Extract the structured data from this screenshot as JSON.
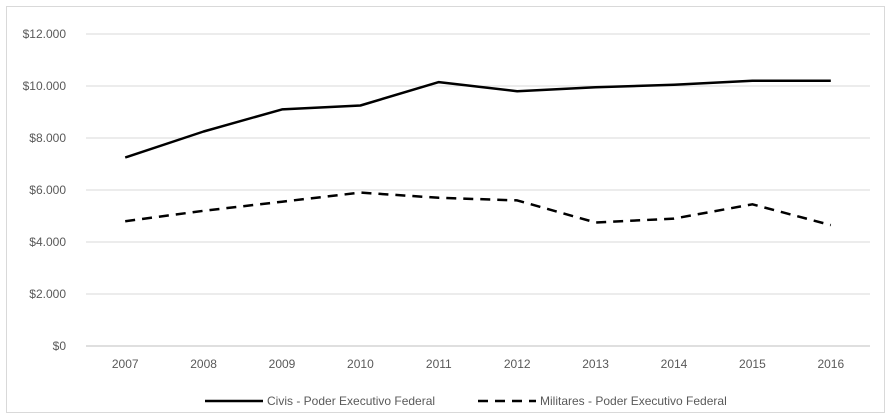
{
  "chart_data": {
    "type": "line",
    "x": [
      "2007",
      "2008",
      "2009",
      "2010",
      "2011",
      "2012",
      "2013",
      "2014",
      "2015",
      "2016"
    ],
    "y_ticks": [
      "$0",
      "$2.000",
      "$4.000",
      "$6.000",
      "$8.000",
      "$10.000",
      "$12.000"
    ],
    "y_tick_values": [
      0,
      2000,
      4000,
      6000,
      8000,
      10000,
      12000
    ],
    "ylim": [
      0,
      12000
    ],
    "grid": "horizontal",
    "legend_position": "bottom",
    "series": [
      {
        "name": "Civis - Poder Executivo Federal",
        "style": "solid",
        "color": "#000000",
        "values": [
          7250,
          8250,
          9100,
          9250,
          10150,
          9800,
          9950,
          10050,
          10200,
          10200
        ]
      },
      {
        "name": "Militares - Poder Executivo Federal",
        "style": "dashed",
        "color": "#000000",
        "values": [
          4800,
          5200,
          5550,
          5900,
          5700,
          5600,
          4750,
          4900,
          5450,
          4650
        ]
      }
    ]
  }
}
